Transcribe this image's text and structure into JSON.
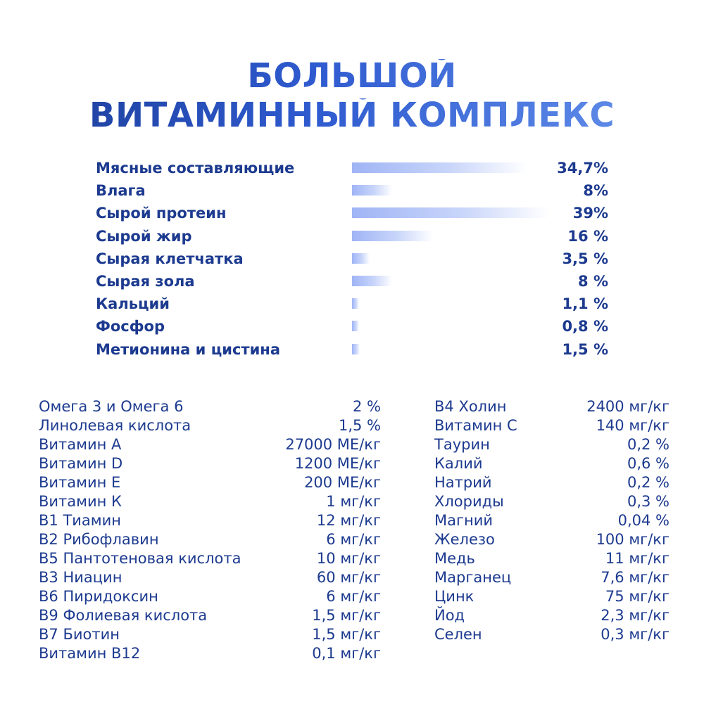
{
  "title": {
    "line1": "БОЛЬШОЙ",
    "line2": "ВИТАМИННЫЙ КОМПЛЕКС"
  },
  "composition": [
    {
      "label": "Мясные составляющие",
      "value": "34,7%",
      "percent": 34.7
    },
    {
      "label": "Влага",
      "value": "8%",
      "percent": 8
    },
    {
      "label": "Сырой протеин",
      "value": "39%",
      "percent": 39
    },
    {
      "label": "Сырой жир",
      "value": "16 %",
      "percent": 16
    },
    {
      "label": "Сырая клетчатка",
      "value": "3,5 %",
      "percent": 3.5
    },
    {
      "label": "Сырая зола",
      "value": "8 %",
      "percent": 8
    },
    {
      "label": "Кальций",
      "value": "1,1 %",
      "percent": 1.1
    },
    {
      "label": "Фосфор",
      "value": "0,8 %",
      "percent": 0.8
    },
    {
      "label": "Метионина и цистина",
      "value": "1,5 %",
      "percent": 1.5
    }
  ],
  "nutrients_left": [
    {
      "name": "Омега 3 и Омега 6",
      "value": "2 %"
    },
    {
      "name": "Линолевая кислота",
      "value": "1,5 %"
    },
    {
      "name": "Витамин А",
      "value": "27000 МЕ/кг"
    },
    {
      "name": "Витамин D",
      "value": "1200 МЕ/кг"
    },
    {
      "name": "Витамин Е",
      "value": "200 МЕ/кг"
    },
    {
      "name": "Витамин К",
      "value": "1 мг/кг"
    },
    {
      "name": "В1 Тиамин",
      "value": "12 мг/кг"
    },
    {
      "name": "В2 Рибофлавин",
      "value": "6 мг/кг"
    },
    {
      "name": "В5 Пантотеновая кислота",
      "value": "10 мг/кг"
    },
    {
      "name": "В3 Ниацин",
      "value": "60 мг/кг"
    },
    {
      "name": "В6 Пиридоксин",
      "value": "6 мг/кг"
    },
    {
      "name": "В9 Фолиевая кислота",
      "value": "1,5 мг/кг"
    },
    {
      "name": "В7 Биотин",
      "value": "1,5 мг/кг"
    },
    {
      "name": "Витамин В12",
      "value": "0,1 мг/кг"
    }
  ],
  "nutrients_right": [
    {
      "name": "В4 Холин",
      "value": "2400 мг/кг"
    },
    {
      "name": "Витамин С",
      "value": "140 мг/кг"
    },
    {
      "name": "Таурин",
      "value": "0,2 %"
    },
    {
      "name": "Калий",
      "value": "0,6 %"
    },
    {
      "name": "Натрий",
      "value": "0,2 %"
    },
    {
      "name": "Хлориды",
      "value": "0,3 %"
    },
    {
      "name": "Магний",
      "value": "0,04 %"
    },
    {
      "name": "Железо",
      "value": "100 мг/кг"
    },
    {
      "name": "Медь",
      "value": "11 мг/кг"
    },
    {
      "name": "Марганец",
      "value": "7,6 мг/кг"
    },
    {
      "name": "Цинк",
      "value": "75 мг/кг"
    },
    {
      "name": "Йод",
      "value": "2,3 мг/кг"
    },
    {
      "name": "Селен",
      "value": "0,3 мг/кг"
    }
  ],
  "colors": {
    "text": "#1c3a8f",
    "title_start": "#1b3c95",
    "title_end": "#6a96ee",
    "bar": "#9fb4f5"
  }
}
